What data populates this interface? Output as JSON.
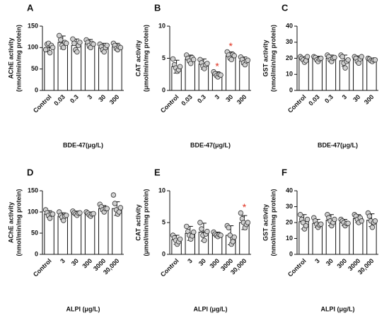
{
  "chart_data": [
    {
      "type": "bar",
      "panel": "A",
      "ylabel": [
        "AChE activity",
        "(nmol/min/mg protein)"
      ],
      "xlabel": "BDE-47(μg/L)",
      "categories": [
        "Control",
        "0.03",
        "0.3",
        "3",
        "30",
        "300"
      ],
      "values": [
        100,
        112,
        105,
        109,
        100,
        102
      ],
      "errors": [
        10,
        15,
        15,
        10,
        10,
        8
      ],
      "points": [
        [
          95,
          108,
          110,
          88,
          105,
          100
        ],
        [
          128,
          118,
          105,
          100,
          112,
          110
        ],
        [
          120,
          110,
          95,
          90,
          105,
          112
        ],
        [
          118,
          112,
          105,
          100,
          110,
          108
        ],
        [
          108,
          102,
          95,
          90,
          100,
          105
        ],
        [
          110,
          105,
          98,
          95,
          102,
          100
        ]
      ],
      "color": "#ffffff",
      "ylim": [
        0,
        150
      ],
      "yticks": [
        0,
        50,
        100,
        150
      ],
      "annotations": []
    },
    {
      "type": "bar",
      "panel": "B",
      "ylabel": [
        "CAT activity",
        "(μmol/min/mg protein)"
      ],
      "xlabel": "BDE-47(μg/L)",
      "categories": [
        "Control",
        "0.03",
        "0.3",
        "3",
        "30",
        "300"
      ],
      "values": [
        3.7,
        4.9,
        4.1,
        2.5,
        5.4,
        4.6
      ],
      "errors": [
        1.0,
        0.6,
        0.8,
        0.4,
        0.6,
        0.6
      ],
      "points": [
        [
          4.9,
          4.0,
          3.5,
          3.0,
          3.2,
          3.7
        ],
        [
          5.5,
          5.0,
          4.6,
          4.2,
          5.1,
          4.8
        ],
        [
          4.8,
          4.3,
          3.8,
          3.4,
          4.0,
          4.2
        ],
        [
          2.9,
          2.6,
          2.3,
          2.1,
          2.5,
          2.4
        ],
        [
          6.0,
          5.5,
          5.0,
          4.8,
          5.6,
          5.4
        ],
        [
          5.2,
          4.8,
          4.3,
          4.0,
          4.6,
          4.7
        ]
      ],
      "color": "#ffffff",
      "ylim": [
        0,
        10
      ],
      "yticks": [
        0,
        5,
        10
      ],
      "annotations": [
        {
          "category": "3",
          "text": "*"
        },
        {
          "category": "30",
          "text": "*"
        }
      ]
    },
    {
      "type": "bar",
      "panel": "C",
      "ylabel": [
        "GST activity",
        "(nmol/min/mg protein)"
      ],
      "xlabel": "BDE-47(μg/L)",
      "categories": [
        "Control",
        "0.03",
        "0.3",
        "3",
        "30",
        "300"
      ],
      "values": [
        19.5,
        19.8,
        20,
        18.5,
        19.5,
        19
      ],
      "errors": [
        1.5,
        1.5,
        2,
        3.5,
        2,
        1
      ],
      "points": [
        [
          21,
          20,
          19,
          17.5,
          18.5,
          21
        ],
        [
          21,
          20.5,
          19,
          18,
          19.5,
          20
        ],
        [
          22,
          21,
          19,
          18,
          20,
          20.5
        ],
        [
          22,
          21,
          17,
          14,
          18,
          19
        ],
        [
          21,
          20,
          18,
          17,
          19.5,
          21
        ],
        [
          20,
          19.5,
          18.5,
          18,
          19,
          19
        ]
      ],
      "color": "#ffffff",
      "ylim": [
        0,
        40
      ],
      "yticks": [
        0,
        10,
        20,
        30,
        40
      ],
      "annotations": []
    },
    {
      "type": "bar",
      "panel": "D",
      "ylabel": [
        "AChE activity",
        "(nmol/min/mg protein)"
      ],
      "xlabel": "ALPI (μg/L)",
      "categories": [
        "Control",
        "3",
        "30",
        "300",
        "3000",
        "30,000"
      ],
      "values": [
        95,
        90,
        97,
        95,
        108,
        108
      ],
      "errors": [
        8,
        8,
        5,
        5,
        7,
        16
      ],
      "points": [
        [
          105,
          98,
          92,
          85,
          95,
          95
        ],
        [
          100,
          92,
          88,
          80,
          90,
          92
        ],
        [
          102,
          98,
          95,
          92,
          97,
          98
        ],
        [
          100,
          97,
          93,
          90,
          95,
          96
        ],
        [
          118,
          112,
          105,
          100,
          108,
          108
        ],
        [
          140,
          120,
          105,
          95,
          100,
          110
        ]
      ],
      "color": "#ffffff",
      "ylim": [
        0,
        150
      ],
      "yticks": [
        0,
        50,
        100,
        150
      ],
      "annotations": []
    },
    {
      "type": "bar",
      "panel": "E",
      "ylabel": [
        "CAT activity",
        "(μmol/min/mg protein)"
      ],
      "xlabel": "ALPI (μg/L)",
      "categories": [
        "Control",
        "3",
        "30",
        "300",
        "3000",
        "30,000"
      ],
      "values": [
        2.3,
        3.3,
        3.5,
        3.1,
        3.0,
        5.0
      ],
      "errors": [
        0.7,
        1.1,
        1.4,
        0.4,
        1.5,
        1.1
      ],
      "points": [
        [
          3.0,
          2.6,
          2.2,
          1.6,
          2.0,
          2.4
        ],
        [
          4.4,
          3.6,
          3.0,
          2.4,
          2.9,
          3.5
        ],
        [
          5.0,
          4.0,
          3.0,
          2.2,
          3.2,
          3.6
        ],
        [
          3.5,
          3.2,
          3.0,
          2.8,
          3.1,
          3.0
        ],
        [
          4.5,
          4.2,
          3.0,
          1.6,
          2.0,
          2.7
        ],
        [
          6.5,
          5.6,
          5.0,
          4.2,
          4.7,
          5.0
        ]
      ],
      "color": "#ffffff",
      "ylim": [
        0,
        10
      ],
      "yticks": [
        0,
        5,
        10
      ],
      "annotations": [
        {
          "category": "30,000",
          "text": "*"
        }
      ]
    },
    {
      "type": "bar",
      "panel": "F",
      "ylabel": [
        "GST activity",
        "(nmol/min/mg protein)"
      ],
      "xlabel": "ALPI (μg/L)",
      "categories": [
        "Control",
        "3",
        "30",
        "300",
        "3000",
        "30,000"
      ],
      "values": [
        20.5,
        19.5,
        21.5,
        20,
        22.5,
        21.5
      ],
      "errors": [
        4.5,
        2.5,
        3.5,
        2,
        2.5,
        4
      ],
      "points": [
        [
          25,
          22,
          20,
          16,
          18,
          22
        ],
        [
          23,
          21,
          19,
          17,
          18.5,
          19
        ],
        [
          25,
          23,
          21,
          18,
          20,
          22
        ],
        [
          22,
          21,
          20,
          18,
          19.5,
          19.5
        ],
        [
          25,
          24,
          22,
          20,
          23,
          21
        ],
        [
          26,
          24,
          21,
          17,
          20,
          21
        ]
      ],
      "color": "#ffffff",
      "ylim": [
        0,
        40
      ],
      "yticks": [
        0,
        10,
        20,
        30,
        40
      ],
      "annotations": []
    }
  ]
}
